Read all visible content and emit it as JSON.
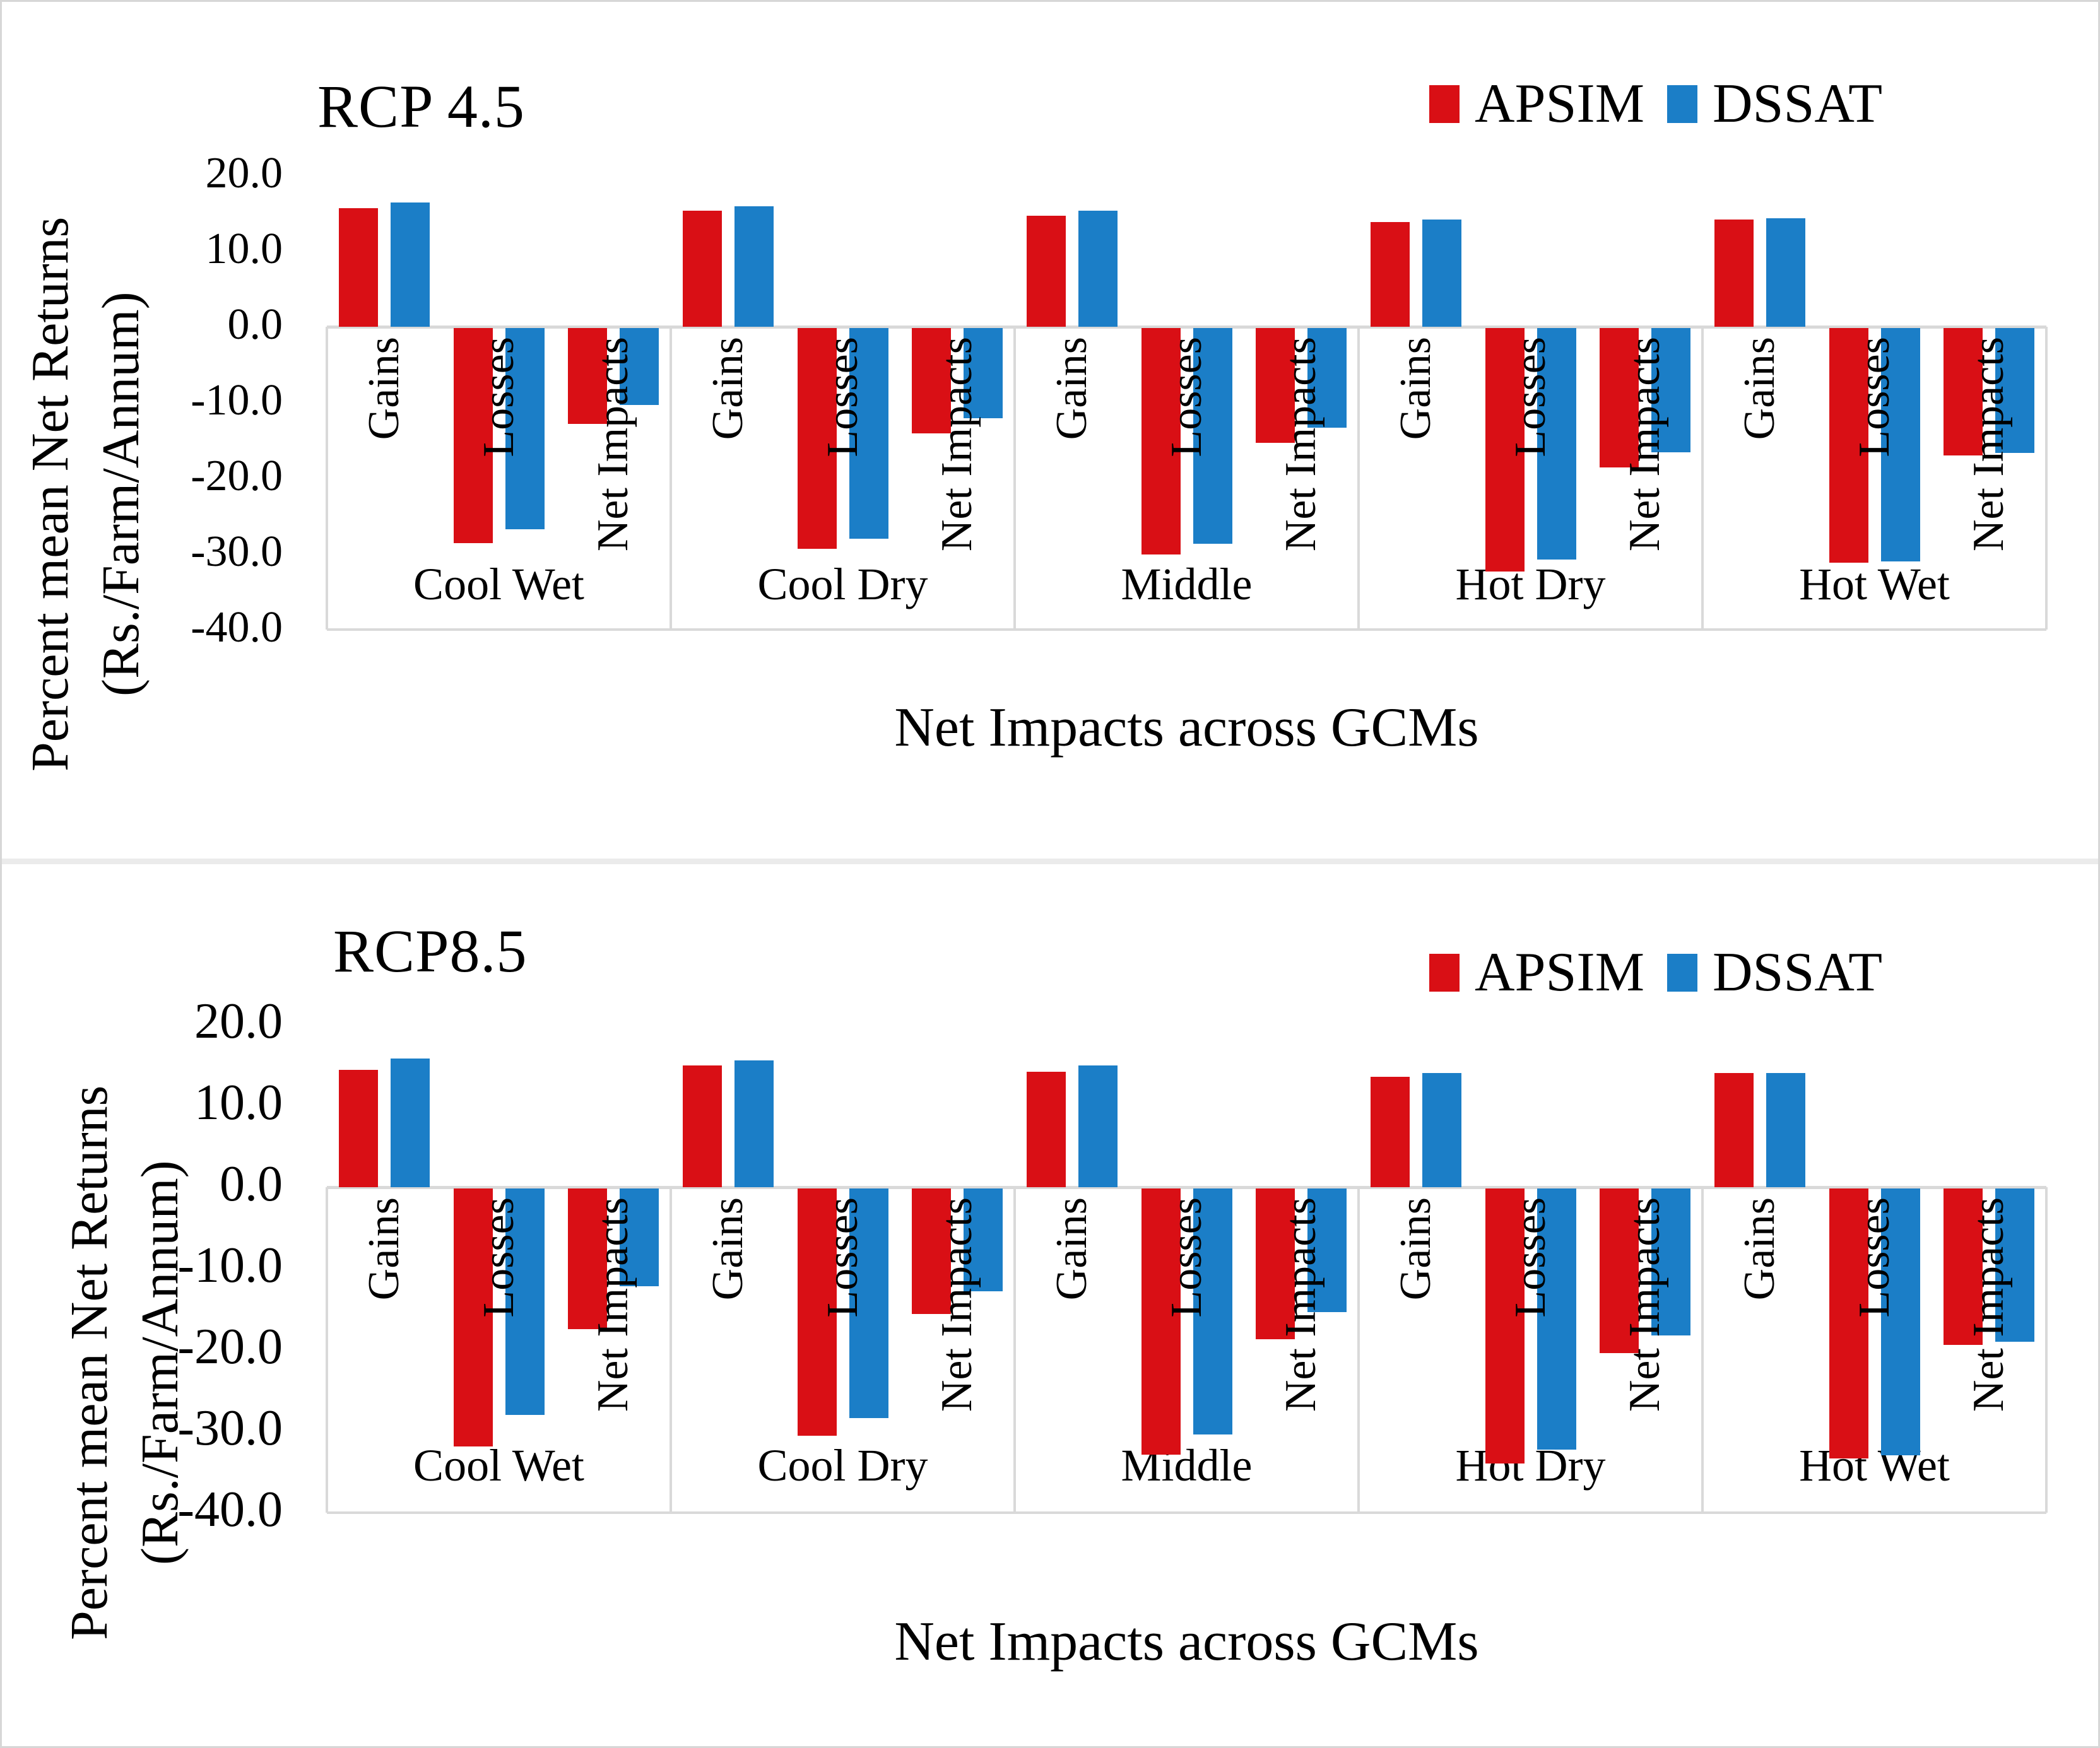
{
  "figure": {
    "background": "#ffffff",
    "frame_color": "#d7d7d7",
    "axis_line_color": "#d9d9d9",
    "text_color": "#000000"
  },
  "chart_data": [
    {
      "type": "bar",
      "title": "RCP 4.5",
      "xlabel": "Net Impacts across GCMs",
      "ylabel_line1": "Percent mean Net Returns",
      "ylabel_line2": "(Rs./Farm/Annum)",
      "ylim": [
        -40,
        20
      ],
      "ytick_step": 10,
      "ytick_labels": [
        "20.0",
        "10.0",
        "0.0",
        "-10.0",
        "-20.0",
        "-30.0",
        "-40.0"
      ],
      "grid": "zero-line-only",
      "legend_position": "top-right",
      "legend": [
        "APSIM",
        "DSSAT"
      ],
      "groups": [
        "Cool Wet",
        "Cool Dry",
        "Middle",
        "Hot Dry",
        "Hot Wet"
      ],
      "categories": [
        "Gains",
        "Losses",
        "Net Impacts"
      ],
      "series": [
        {
          "name": "APSIM",
          "color": "#d90f15",
          "values": [
            [
              15.7,
              -28.4,
              -12.7
            ],
            [
              15.3,
              -29.2,
              -13.9
            ],
            [
              14.7,
              -29.9,
              -15.2
            ],
            [
              13.8,
              -32.2,
              -18.4
            ],
            [
              14.2,
              -31.0,
              -16.8
            ]
          ]
        },
        {
          "name": "DSSAT",
          "color": "#1b7ec7",
          "values": [
            [
              16.4,
              -26.6,
              -10.2
            ],
            [
              15.9,
              -27.8,
              -11.9
            ],
            [
              15.3,
              -28.5,
              -13.2
            ],
            [
              14.2,
              -30.6,
              -16.4
            ],
            [
              14.3,
              -30.8,
              -16.5
            ]
          ]
        }
      ]
    },
    {
      "type": "bar",
      "title": "RCP8.5",
      "xlabel": "Net Impacts across GCMs",
      "ylabel_line1": "Percent mean Net Returns",
      "ylabel_line2": "(Rs./Farm/Annum)",
      "ylim": [
        -40,
        20
      ],
      "ytick_step": 10,
      "ytick_labels": [
        "20.0",
        "10.0",
        "0.0",
        "-10.0",
        "-20.0",
        "-30.0",
        "-40.0"
      ],
      "grid": "zero-line-only",
      "legend_position": "top-right",
      "legend": [
        "APSIM",
        "DSSAT"
      ],
      "groups": [
        "Cool Wet",
        "Cool Dry",
        "Middle",
        "Hot Dry",
        "Hot Wet"
      ],
      "categories": [
        "Gains",
        "Losses",
        "Net Impacts"
      ],
      "series": [
        {
          "name": "APSIM",
          "color": "#d90f15",
          "values": [
            [
              14.4,
              -31.7,
              -17.3
            ],
            [
              15.0,
              -30.4,
              -15.4
            ],
            [
              14.2,
              -32.7,
              -18.5
            ],
            [
              13.6,
              -33.8,
              -20.2
            ],
            [
              14.0,
              -33.2,
              -19.2
            ]
          ]
        },
        {
          "name": "DSSAT",
          "color": "#1b7ec7",
          "values": [
            [
              15.8,
              -27.8,
              -12.0
            ],
            [
              15.6,
              -28.2,
              -12.6
            ],
            [
              15.0,
              -30.2,
              -15.2
            ],
            [
              14.0,
              -32.1,
              -18.1
            ],
            [
              14.0,
              -32.8,
              -18.8
            ]
          ]
        }
      ]
    }
  ]
}
